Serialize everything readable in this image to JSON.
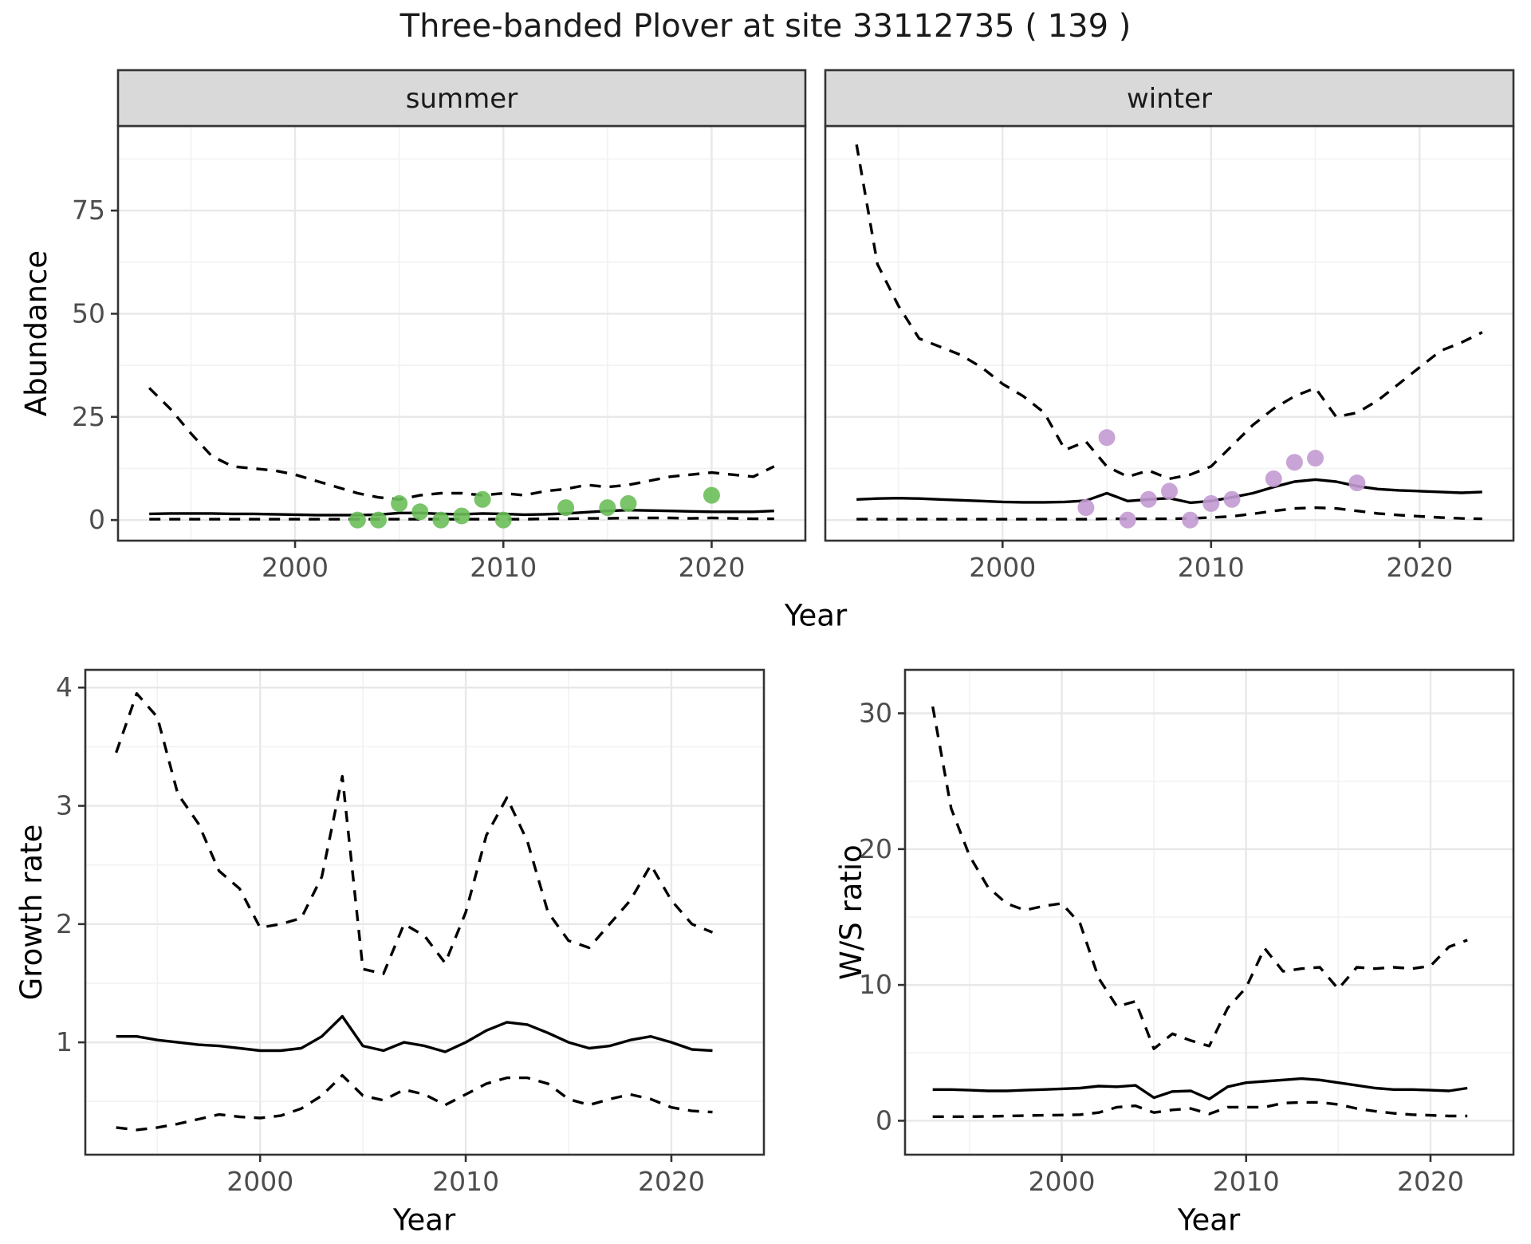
{
  "title": "Three-banded Plover at site 33112735 ( 139 )",
  "axes": {
    "x_title_top": "Year",
    "x_title_bottom_left": "Year",
    "x_title_bottom_right": "Year",
    "abundance_title": "Abundance",
    "growth_title": "Growth rate",
    "ws_title": "W/S ratio"
  },
  "colors": {
    "summer_point": "#6cbe5a",
    "winter_point": "#c39ad2",
    "line": "#000000",
    "strip_bg": "#d9d9d9",
    "panel_border": "#333333",
    "grid_major": "#e8e8e8",
    "grid_minor": "#f2f2f2",
    "axis_text": "#4d4d4d",
    "tick_mark": "#333333"
  },
  "chart_data": [
    {
      "id": "abundance-summer",
      "type": "line",
      "facet_label": "summer",
      "ylabel": "Abundance",
      "xlabel": "Year",
      "xlim": [
        1991.5,
        2024.5
      ],
      "ylim": [
        -5,
        95.5
      ],
      "x_ticks": [
        2000,
        2010,
        2020
      ],
      "x_tick_labels": [
        "2000",
        "2010",
        "2020"
      ],
      "y_ticks": [
        0,
        25,
        50,
        75
      ],
      "y_tick_labels": [
        "0",
        "25",
        "50",
        "75"
      ],
      "show_y_labels": true,
      "years": [
        1993,
        1994,
        1995,
        1996,
        1997,
        1998,
        1999,
        2000,
        2001,
        2002,
        2003,
        2004,
        2005,
        2006,
        2007,
        2008,
        2009,
        2010,
        2011,
        2012,
        2013,
        2014,
        2015,
        2016,
        2017,
        2018,
        2019,
        2020,
        2021,
        2022,
        2023
      ],
      "series": [
        {
          "name": "median",
          "style": "solid",
          "values": [
            1.5,
            1.6,
            1.6,
            1.6,
            1.5,
            1.5,
            1.4,
            1.3,
            1.2,
            1.2,
            1.2,
            1.3,
            1.7,
            1.7,
            1.5,
            1.4,
            1.6,
            1.5,
            1.3,
            1.4,
            1.6,
            1.9,
            2.2,
            2.4,
            2.3,
            2.2,
            2.1,
            2.0,
            2.0,
            2.0,
            2.2
          ]
        },
        {
          "name": "upper-ci",
          "style": "dashed",
          "values": [
            32,
            27,
            21,
            15.5,
            13,
            12.5,
            12,
            11,
            9.5,
            8,
            6.5,
            5.5,
            5,
            6,
            6.5,
            6.5,
            6,
            6.5,
            6,
            7,
            7.5,
            8.5,
            8,
            8.5,
            9.5,
            10.5,
            11,
            11.5,
            11,
            10.5,
            13
          ]
        },
        {
          "name": "lower-ci",
          "style": "dashed",
          "values": [
            0.2,
            0.2,
            0.2,
            0.2,
            0.2,
            0.2,
            0.2,
            0.2,
            0.2,
            0.2,
            0.2,
            0.2,
            0.2,
            0.2,
            0.2,
            0.2,
            0.2,
            0.2,
            0.2,
            0.3,
            0.3,
            0.4,
            0.4,
            0.5,
            0.5,
            0.5,
            0.4,
            0.5,
            0.4,
            0.3,
            0.3
          ]
        }
      ],
      "points": {
        "name": "observed-counts-summer",
        "color_key": "summer_point",
        "x": [
          2003,
          2004,
          2005,
          2006,
          2007,
          2008,
          2009,
          2010,
          2013,
          2015,
          2016,
          2020
        ],
        "y": [
          0,
          0,
          4,
          2,
          0,
          1,
          5,
          0,
          3,
          3,
          4,
          6
        ]
      }
    },
    {
      "id": "abundance-winter",
      "type": "line",
      "facet_label": "winter",
      "ylabel": "Abundance",
      "xlabel": "Year",
      "xlim": [
        1991.5,
        2024.5
      ],
      "ylim": [
        -5,
        95.5
      ],
      "x_ticks": [
        2000,
        2010,
        2020
      ],
      "x_tick_labels": [
        "2000",
        "2010",
        "2020"
      ],
      "y_ticks": [
        0,
        25,
        50,
        75
      ],
      "y_tick_labels": [
        "0",
        "25",
        "50",
        "75"
      ],
      "show_y_labels": false,
      "years": [
        1993,
        1994,
        1995,
        1996,
        1997,
        1998,
        1999,
        2000,
        2001,
        2002,
        2003,
        2004,
        2005,
        2006,
        2007,
        2008,
        2009,
        2010,
        2011,
        2012,
        2013,
        2014,
        2015,
        2016,
        2017,
        2018,
        2019,
        2020,
        2021,
        2022,
        2023
      ],
      "series": [
        {
          "name": "median",
          "style": "solid",
          "values": [
            5.0,
            5.2,
            5.3,
            5.2,
            5.0,
            4.8,
            4.6,
            4.4,
            4.3,
            4.3,
            4.4,
            4.7,
            6.5,
            4.6,
            5.0,
            5.3,
            4.2,
            4.6,
            5.5,
            6.5,
            8.0,
            9.3,
            9.8,
            9.3,
            8.2,
            7.5,
            7.2,
            7.0,
            6.8,
            6.6,
            6.8
          ]
        },
        {
          "name": "upper-ci",
          "style": "dashed",
          "values": [
            91,
            62,
            52,
            44,
            42,
            40,
            37,
            33,
            30,
            26,
            17,
            19,
            13,
            10.5,
            12,
            10,
            11,
            13,
            18,
            23,
            27,
            30,
            32,
            25,
            26,
            29,
            33,
            37,
            41,
            43,
            45.5
          ]
        },
        {
          "name": "lower-ci",
          "style": "dashed",
          "values": [
            0.2,
            0.2,
            0.2,
            0.2,
            0.2,
            0.2,
            0.2,
            0.2,
            0.2,
            0.2,
            0.2,
            0.2,
            0.3,
            0.3,
            0.3,
            0.3,
            0.4,
            0.6,
            0.9,
            1.5,
            2.2,
            2.8,
            3.0,
            2.8,
            2.2,
            1.6,
            1.2,
            0.9,
            0.6,
            0.4,
            0.3
          ]
        }
      ],
      "points": {
        "name": "observed-counts-winter",
        "color_key": "winter_point",
        "x": [
          2004,
          2005,
          2006,
          2007,
          2008,
          2009,
          2010,
          2011,
          2013,
          2014,
          2015,
          2017
        ],
        "y": [
          3,
          20,
          0,
          5,
          7,
          0,
          4,
          5,
          10,
          14,
          15,
          9
        ]
      }
    },
    {
      "id": "growth-rate",
      "type": "line",
      "facet_label": null,
      "ylabel": "Growth rate",
      "xlabel": "Year",
      "xlim": [
        1991.5,
        2024.5
      ],
      "ylim": [
        0.05,
        4.15
      ],
      "x_ticks": [
        2000,
        2010,
        2020
      ],
      "x_tick_labels": [
        "2000",
        "2010",
        "2020"
      ],
      "y_ticks": [
        1,
        2,
        3,
        4
      ],
      "y_tick_labels": [
        "1",
        "2",
        "3",
        "4"
      ],
      "show_y_labels": true,
      "years": [
        1993,
        1994,
        1995,
        1996,
        1997,
        1998,
        1999,
        2000,
        2001,
        2002,
        2003,
        2004,
        2005,
        2006,
        2007,
        2008,
        2009,
        2010,
        2011,
        2012,
        2013,
        2014,
        2015,
        2016,
        2017,
        2018,
        2019,
        2020,
        2021,
        2022
      ],
      "series": [
        {
          "name": "median",
          "style": "solid",
          "values": [
            1.05,
            1.05,
            1.02,
            1.0,
            0.98,
            0.97,
            0.95,
            0.93,
            0.93,
            0.95,
            1.05,
            1.22,
            0.97,
            0.93,
            1.0,
            0.97,
            0.92,
            1.0,
            1.1,
            1.17,
            1.15,
            1.08,
            1.0,
            0.95,
            0.97,
            1.02,
            1.05,
            1.0,
            0.94,
            0.93
          ]
        },
        {
          "name": "upper-ci",
          "style": "dashed",
          "values": [
            3.45,
            3.95,
            3.75,
            3.1,
            2.85,
            2.45,
            2.3,
            1.97,
            2.0,
            2.05,
            2.4,
            3.25,
            1.62,
            1.58,
            2.0,
            1.9,
            1.67,
            2.1,
            2.75,
            3.07,
            2.7,
            2.1,
            1.86,
            1.8,
            2.0,
            2.2,
            2.5,
            2.2,
            2.0,
            1.93
          ]
        },
        {
          "name": "lower-ci",
          "style": "dashed",
          "values": [
            0.28,
            0.26,
            0.28,
            0.31,
            0.35,
            0.39,
            0.37,
            0.36,
            0.38,
            0.44,
            0.55,
            0.72,
            0.55,
            0.51,
            0.6,
            0.56,
            0.47,
            0.56,
            0.65,
            0.7,
            0.7,
            0.65,
            0.52,
            0.47,
            0.52,
            0.56,
            0.52,
            0.45,
            0.42,
            0.41
          ]
        }
      ],
      "points": null
    },
    {
      "id": "ws-ratio",
      "type": "line",
      "facet_label": null,
      "ylabel": "W/S ratio",
      "xlabel": "Year",
      "xlim": [
        1991.5,
        2024.5
      ],
      "ylim": [
        -2.5,
        33.2
      ],
      "x_ticks": [
        2000,
        2010,
        2020
      ],
      "x_tick_labels": [
        "2000",
        "2010",
        "2020"
      ],
      "y_ticks": [
        0,
        10,
        20,
        30
      ],
      "y_tick_labels": [
        "0",
        "10",
        "20",
        "30"
      ],
      "show_y_labels": true,
      "years": [
        1993,
        1994,
        1995,
        1996,
        1997,
        1998,
        1999,
        2000,
        2001,
        2002,
        2003,
        2004,
        2005,
        2006,
        2007,
        2008,
        2009,
        2010,
        2011,
        2012,
        2013,
        2014,
        2015,
        2016,
        2017,
        2018,
        2019,
        2020,
        2021,
        2022
      ],
      "series": [
        {
          "name": "median",
          "style": "solid",
          "values": [
            2.3,
            2.3,
            2.25,
            2.2,
            2.2,
            2.25,
            2.3,
            2.35,
            2.4,
            2.55,
            2.5,
            2.6,
            1.7,
            2.15,
            2.2,
            1.6,
            2.5,
            2.8,
            2.9,
            3.0,
            3.1,
            3.0,
            2.8,
            2.6,
            2.4,
            2.3,
            2.3,
            2.25,
            2.2,
            2.4
          ]
        },
        {
          "name": "upper-ci",
          "style": "dashed",
          "values": [
            30.5,
            23,
            19.5,
            17.2,
            16.0,
            15.5,
            15.8,
            16.0,
            14.5,
            10.5,
            8.4,
            8.8,
            5.3,
            6.4,
            5.9,
            5.5,
            8.3,
            9.8,
            12.7,
            11.0,
            11.2,
            11.3,
            9.7,
            11.3,
            11.2,
            11.3,
            11.2,
            11.4,
            12.8,
            13.3
          ]
        },
        {
          "name": "lower-ci",
          "style": "dashed",
          "values": [
            0.3,
            0.3,
            0.3,
            0.32,
            0.35,
            0.38,
            0.4,
            0.42,
            0.45,
            0.6,
            1.0,
            1.1,
            0.6,
            0.8,
            0.9,
            0.5,
            1.0,
            1.0,
            1.0,
            1.3,
            1.35,
            1.35,
            1.2,
            0.9,
            0.7,
            0.55,
            0.45,
            0.4,
            0.35,
            0.35
          ]
        }
      ],
      "points": null
    }
  ]
}
